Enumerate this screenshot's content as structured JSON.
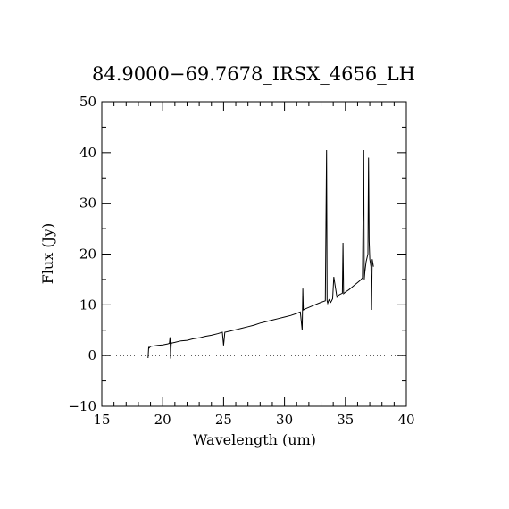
{
  "chart_data": {
    "type": "line",
    "title": "84.9000−69.7678_IRSX_4656_LH",
    "xlabel": "Wavelength (um)",
    "ylabel": "Flux (Jy)",
    "xlim": [
      15,
      40
    ],
    "ylim": [
      -10,
      50
    ],
    "x_ticks": [
      "15",
      "20",
      "25",
      "30",
      "35",
      "40"
    ],
    "y_ticks": [
      "−10",
      "0",
      "10",
      "20",
      "30",
      "40",
      "50"
    ],
    "zero_line": {
      "y": 0,
      "style": "dotted"
    },
    "grid": false,
    "legend": "none",
    "series": [
      {
        "color": "#000000",
        "x": [
          18.8,
          18.85,
          18.9,
          19.0,
          19.3,
          19.6,
          20.0,
          20.4,
          20.55,
          20.6,
          20.65,
          20.7,
          20.75,
          20.8,
          21.0,
          21.5,
          22.0,
          22.5,
          23.0,
          23.5,
          24.0,
          24.5,
          24.9,
          25.0,
          25.1,
          25.5,
          26.0,
          26.5,
          27.0,
          27.5,
          28.0,
          28.5,
          29.0,
          29.5,
          30.0,
          30.5,
          31.0,
          31.3,
          31.45,
          31.5,
          31.55,
          31.7,
          32.0,
          32.5,
          33.0,
          33.35,
          33.45,
          33.5,
          33.55,
          33.65,
          33.8,
          33.95,
          34.05,
          34.3,
          34.4,
          34.5,
          34.75,
          34.8,
          34.85,
          35.0,
          35.3,
          35.6,
          35.9,
          36.2,
          36.4,
          36.5,
          36.55,
          36.6,
          36.7,
          36.85,
          36.9,
          36.95,
          37.0,
          37.1,
          37.15,
          37.2,
          37.3
        ],
        "y": [
          -0.5,
          1.6,
          1.5,
          1.8,
          1.9,
          2.0,
          2.1,
          2.3,
          2.4,
          3.6,
          -0.6,
          2.3,
          2.5,
          2.5,
          2.6,
          2.9,
          3.0,
          3.3,
          3.5,
          3.8,
          4.0,
          4.3,
          4.6,
          2.0,
          4.6,
          4.8,
          5.1,
          5.4,
          5.7,
          6.0,
          6.4,
          6.7,
          7.0,
          7.3,
          7.6,
          7.9,
          8.3,
          8.6,
          5.0,
          13.2,
          9.0,
          9.2,
          9.5,
          10.0,
          10.5,
          10.8,
          40.5,
          10.8,
          10.3,
          11.0,
          10.5,
          11.2,
          15.5,
          11.5,
          11.8,
          12.0,
          12.3,
          22.2,
          12.2,
          12.5,
          13.0,
          13.6,
          14.2,
          14.8,
          15.3,
          40.5,
          15.0,
          16.5,
          18.5,
          20.0,
          39.0,
          22.5,
          19.0,
          17.5,
          9.0,
          19.0,
          17.5
        ]
      }
    ]
  }
}
